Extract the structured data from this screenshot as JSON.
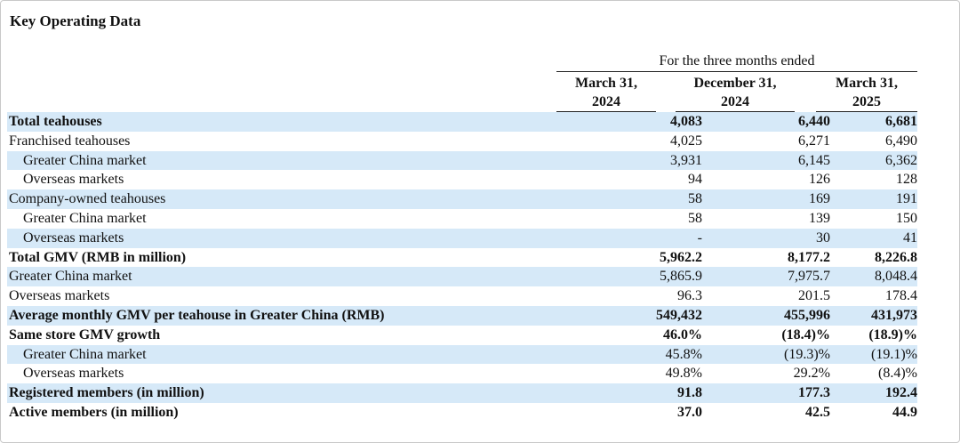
{
  "title": "Key Operating Data",
  "period_header": "For the three months ended",
  "columns": [
    {
      "line1": "March 31,",
      "line2": "2024"
    },
    {
      "line1": "December 31,",
      "line2": "2024"
    },
    {
      "line1": "March 31,",
      "line2": "2025"
    }
  ],
  "rows": [
    {
      "label": "Total teahouses",
      "values": [
        "4,083",
        "6,440",
        "6,681"
      ]
    },
    {
      "label": "Franchised teahouses",
      "values": [
        "4,025",
        "6,271",
        "6,490"
      ]
    },
    {
      "label": "Greater China market",
      "values": [
        "3,931",
        "6,145",
        "6,362"
      ]
    },
    {
      "label": "Overseas markets",
      "values": [
        "94",
        "126",
        "128"
      ]
    },
    {
      "label": "Company-owned teahouses",
      "values": [
        "58",
        "169",
        "191"
      ]
    },
    {
      "label": "Greater China market",
      "values": [
        "58",
        "139",
        "150"
      ]
    },
    {
      "label": "Overseas markets",
      "values": [
        "-",
        "30",
        "41"
      ]
    },
    {
      "label": "Total GMV (RMB in million)",
      "values": [
        "5,962.2",
        "8,177.2",
        "8,226.8"
      ]
    },
    {
      "label": "Greater China market",
      "values": [
        "5,865.9",
        "7,975.7",
        "8,048.4"
      ]
    },
    {
      "label": "Overseas markets",
      "values": [
        "96.3",
        "201.5",
        "178.4"
      ]
    },
    {
      "label": "Average monthly GMV per teahouse in Greater China (RMB)",
      "values": [
        "549,432",
        "455,996",
        "431,973"
      ]
    },
    {
      "label": "Same store GMV growth",
      "values": [
        "46.0%",
        "(18.4)%",
        "(18.9)%"
      ]
    },
    {
      "label": "Greater China market",
      "values": [
        "45.8%",
        "(19.3)%",
        "(19.1)%"
      ]
    },
    {
      "label": "Overseas markets",
      "values": [
        "49.8%",
        "29.2%",
        "(8.4)%"
      ]
    },
    {
      "label": "Registered members (in million)",
      "values": [
        "91.8",
        "177.3",
        "192.4"
      ]
    },
    {
      "label": "Active members (in million)",
      "values": [
        "37.0",
        "42.5",
        "44.9"
      ]
    }
  ]
}
